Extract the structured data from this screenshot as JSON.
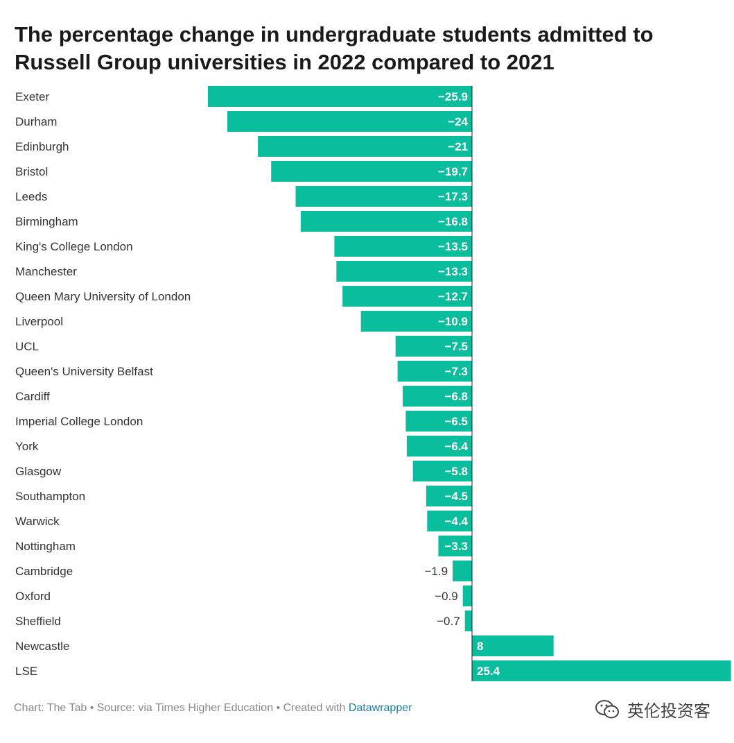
{
  "chart_data": {
    "type": "bar",
    "orientation": "horizontal",
    "title": "The percentage change in undergraduate students admitted to Russell Group universities in 2022 compared to 2021",
    "categories": [
      "Exeter",
      "Durham",
      "Edinburgh",
      "Bristol",
      "Leeds",
      "Birmingham",
      "King's College London",
      "Manchester",
      "Queen Mary University of London",
      "Liverpool",
      "UCL",
      "Queen's University Belfast",
      "Cardiff",
      "Imperial College London",
      "York",
      "Glasgow",
      "Southampton",
      "Warwick",
      "Nottingham",
      "Cambridge",
      "Oxford",
      "Sheffield",
      "Newcastle",
      "LSE"
    ],
    "values": [
      -25.9,
      -24,
      -21,
      -19.7,
      -17.3,
      -16.8,
      -13.5,
      -13.3,
      -12.7,
      -10.9,
      -7.5,
      -7.3,
      -6.8,
      -6.5,
      -6.4,
      -5.8,
      -4.5,
      -4.4,
      -3.3,
      -1.9,
      -0.9,
      -0.7,
      8,
      25.4
    ],
    "value_labels": [
      "−25.9",
      "−24",
      "−21",
      "−19.7",
      "−17.3",
      "−16.8",
      "−13.5",
      "−13.3",
      "−12.7",
      "−10.9",
      "−7.5",
      "−7.3",
      "−6.8",
      "−6.5",
      "−6.4",
      "−5.8",
      "−4.5",
      "−4.4",
      "−3.3",
      "−1.9",
      "−0.9",
      "−0.7",
      "8",
      "25.4"
    ],
    "xlim": [
      -25.9,
      25.4
    ],
    "bar_color": "#0abd9d",
    "grid": false,
    "xlabel": "",
    "ylabel": ""
  },
  "footer": {
    "credit": "Chart: The Tab • Source: via Times Higher Education • Created with ",
    "tool_link": "Datawrapper"
  },
  "watermark": {
    "icon": "wechat-icon",
    "text": "英伦投资客"
  }
}
